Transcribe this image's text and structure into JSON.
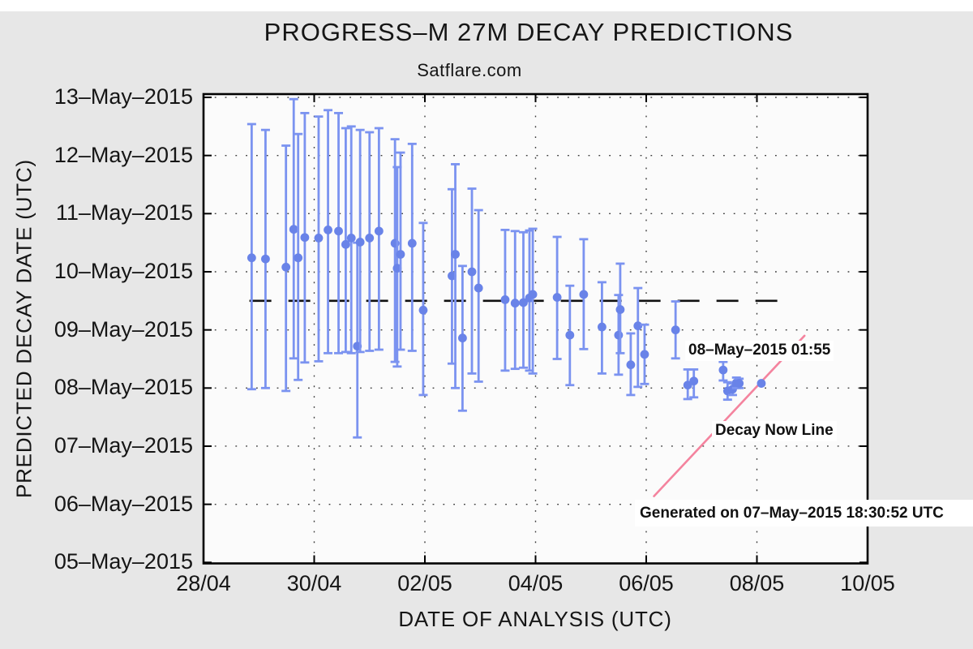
{
  "figure": {
    "background_color": "#e7e7e7",
    "plot_background_color": "#fbfbfb",
    "top_strip_color": "#ffffff"
  },
  "chart_data": {
    "type": "scatter",
    "title": "PROGRESS–M 27M DECAY PREDICTIONS",
    "subtitle": "Satflare.com",
    "xlabel": "DATE OF ANALYSIS (UTC)",
    "ylabel": "PREDICTED DECAY DATE (UTC)",
    "grid": "dotted",
    "legend": "none",
    "x_axis": {
      "unit": "days after 28-Apr-2015 00:00 UTC",
      "range": [
        0,
        12
      ],
      "tick_days": [
        0,
        2,
        4,
        6,
        8,
        10,
        12
      ],
      "tick_labels": [
        "28/04",
        "30/04",
        "02/05",
        "04/05",
        "06/05",
        "08/05",
        "10/05"
      ]
    },
    "y_axis": {
      "unit": "day of May 2015 (UTC)",
      "range": [
        5,
        13.06
      ],
      "tick_may": [
        5,
        6,
        7,
        8,
        9,
        10,
        11,
        12,
        13
      ],
      "tick_labels": [
        "05–May–2015",
        "06–May–2015",
        "07–May–2015",
        "08–May–2015",
        "09–May–2015",
        "10–May–2015",
        "11–May–2015",
        "12–May–2015",
        "13–May–2015"
      ]
    },
    "series": [
      {
        "name": "decay predictions with uncertainty window",
        "marker": "circle",
        "marker_color": "#6983e8",
        "error_bar_color": "#7b93f0",
        "points": [
          {
            "d": 0.87,
            "decay": 10.24,
            "lo": 7.98,
            "hi": 12.54
          },
          {
            "d": 1.12,
            "decay": 10.22,
            "lo": 8.0,
            "hi": 12.44
          },
          {
            "d": 1.49,
            "decay": 10.08,
            "lo": 7.95,
            "hi": 12.17
          },
          {
            "d": 1.63,
            "decay": 10.73,
            "lo": 8.51,
            "hi": 12.97
          },
          {
            "d": 1.71,
            "decay": 10.24,
            "lo": 8.14,
            "hi": 12.37
          },
          {
            "d": 1.83,
            "decay": 10.59,
            "lo": 8.44,
            "hi": 12.73
          },
          {
            "d": 2.08,
            "decay": 10.58,
            "lo": 8.46,
            "hi": 12.67
          },
          {
            "d": 2.25,
            "decay": 10.72,
            "lo": 8.6,
            "hi": 12.78
          },
          {
            "d": 2.44,
            "decay": 10.7,
            "lo": 8.6,
            "hi": 12.73
          },
          {
            "d": 2.57,
            "decay": 10.47,
            "lo": 8.62,
            "hi": 12.47
          },
          {
            "d": 2.67,
            "decay": 10.58,
            "lo": 8.6,
            "hi": 12.5
          },
          {
            "d": 2.78,
            "decay": 8.72,
            "lo": 7.15,
            "hi": 10.5
          },
          {
            "d": 2.83,
            "decay": 10.51,
            "lo": 8.62,
            "hi": 12.44
          },
          {
            "d": 3.0,
            "decay": 10.58,
            "lo": 8.64,
            "hi": 12.4
          },
          {
            "d": 3.17,
            "decay": 10.7,
            "lo": 8.66,
            "hi": 12.47
          },
          {
            "d": 3.46,
            "decay": 10.49,
            "lo": 8.45,
            "hi": 12.28
          },
          {
            "d": 3.5,
            "decay": 10.06,
            "lo": 8.37,
            "hi": 11.8
          },
          {
            "d": 3.56,
            "decay": 10.3,
            "lo": 8.66,
            "hi": 12.05
          },
          {
            "d": 3.77,
            "decay": 10.49,
            "lo": 8.64,
            "hi": 12.2
          },
          {
            "d": 3.97,
            "decay": 9.34,
            "lo": 7.88,
            "hi": 10.84
          },
          {
            "d": 4.49,
            "decay": 9.93,
            "lo": 8.42,
            "hi": 11.42
          },
          {
            "d": 4.55,
            "decay": 10.3,
            "lo": 8.0,
            "hi": 11.85
          },
          {
            "d": 4.68,
            "decay": 8.86,
            "lo": 7.61,
            "hi": 10.1
          },
          {
            "d": 4.85,
            "decay": 10.0,
            "lo": 8.25,
            "hi": 11.43
          },
          {
            "d": 4.97,
            "decay": 9.72,
            "lo": 8.11,
            "hi": 11.06
          },
          {
            "d": 5.45,
            "decay": 9.52,
            "lo": 8.3,
            "hi": 10.72
          },
          {
            "d": 5.63,
            "decay": 9.46,
            "lo": 8.33,
            "hi": 10.7
          },
          {
            "d": 5.78,
            "decay": 9.47,
            "lo": 8.35,
            "hi": 10.68
          },
          {
            "d": 5.89,
            "decay": 9.55,
            "lo": 8.3,
            "hi": 10.71
          },
          {
            "d": 5.95,
            "decay": 9.61,
            "lo": 8.25,
            "hi": 10.74
          },
          {
            "d": 6.39,
            "decay": 9.56,
            "lo": 8.5,
            "hi": 10.6
          },
          {
            "d": 6.62,
            "decay": 8.91,
            "lo": 8.05,
            "hi": 9.76
          },
          {
            "d": 6.87,
            "decay": 9.61,
            "lo": 8.67,
            "hi": 10.56
          },
          {
            "d": 7.2,
            "decay": 9.05,
            "lo": 8.25,
            "hi": 9.82
          },
          {
            "d": 7.5,
            "decay": 8.91,
            "lo": 8.23,
            "hi": 9.6
          },
          {
            "d": 7.53,
            "decay": 9.35,
            "lo": 8.6,
            "hi": 10.14
          },
          {
            "d": 7.72,
            "decay": 8.4,
            "lo": 7.88,
            "hi": 8.94
          },
          {
            "d": 7.85,
            "decay": 9.07,
            "lo": 8.02,
            "hi": 9.72
          },
          {
            "d": 7.97,
            "decay": 8.58,
            "lo": 8.07,
            "hi": 9.09
          },
          {
            "d": 8.53,
            "decay": 9.0,
            "lo": 8.51,
            "hi": 9.49
          },
          {
            "d": 8.75,
            "decay": 8.05,
            "lo": 7.81,
            "hi": 8.32
          },
          {
            "d": 8.86,
            "decay": 8.12,
            "lo": 7.84,
            "hi": 8.32
          },
          {
            "d": 9.39,
            "decay": 8.31,
            "lo": 8.13,
            "hi": 8.45
          },
          {
            "d": 9.47,
            "decay": 7.95,
            "lo": 7.8,
            "hi": 8.1
          },
          {
            "d": 9.56,
            "decay": 7.98,
            "lo": 7.88,
            "hi": 8.08
          },
          {
            "d": 9.63,
            "decay": 8.09,
            "lo": 8.0,
            "hi": 8.18
          },
          {
            "d": 9.68,
            "decay": 8.08,
            "lo": 8.0,
            "hi": 8.16
          },
          {
            "d": 10.08,
            "decay": 8.08,
            "lo": 8.08,
            "hi": 8.08
          }
        ]
      }
    ],
    "reference_lines": [
      {
        "id": "nominal-decay-dashed",
        "style": "dashed",
        "color": "#111111",
        "y_may": 9.5,
        "from_d": 0.83,
        "to_d": 10.5
      },
      {
        "id": "decay-now",
        "style": "solid",
        "color": "#f4839e",
        "from": {
          "d": 8.14,
          "may": 6.14
        },
        "to": {
          "d": 10.86,
          "may": 8.9
        }
      }
    ],
    "annotations": [
      {
        "id": "latest-prediction",
        "text": "08–May–2015 01:55"
      },
      {
        "id": "decay-now-label",
        "text": "Decay Now Line"
      },
      {
        "id": "generated-stamp",
        "text": "Generated on 07–May–2015 18:30:52 UTC"
      }
    ]
  }
}
